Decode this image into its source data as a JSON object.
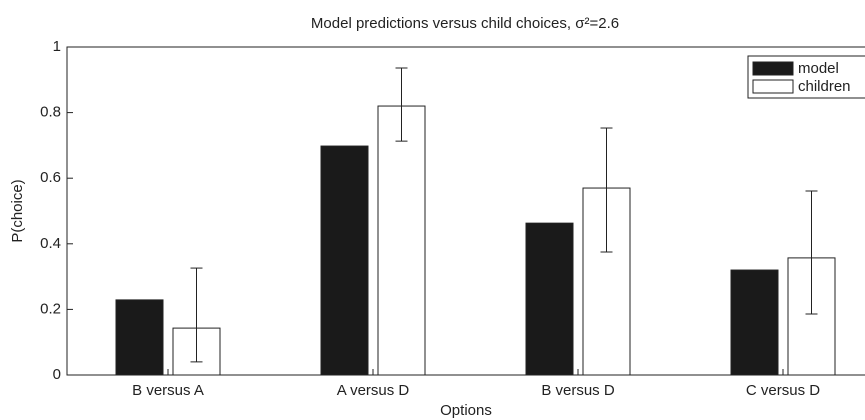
{
  "chart_data": {
    "type": "bar",
    "title": "Model predictions versus child choices, σ²=2.6",
    "x_label": "Options",
    "y_label": "P(choice)",
    "categories": [
      "B versus A",
      "A versus D",
      "B versus D",
      "C versus D"
    ],
    "series": [
      {
        "name": "model",
        "color": "#1a1a1a",
        "values": [
          0.229,
          0.698,
          0.463,
          0.32
        ]
      },
      {
        "name": "children",
        "color": "#ffffff",
        "values": [
          0.143,
          0.82,
          0.57,
          0.357
        ],
        "ci_low": [
          0.04,
          0.713,
          0.375,
          0.186
        ],
        "ci_high": [
          0.326,
          0.936,
          0.753,
          0.561
        ]
      }
    ],
    "ylim": [
      0,
      1
    ],
    "yticks": [
      0,
      0.2,
      0.4,
      0.6,
      0.8,
      1
    ],
    "legend": "upper right"
  }
}
